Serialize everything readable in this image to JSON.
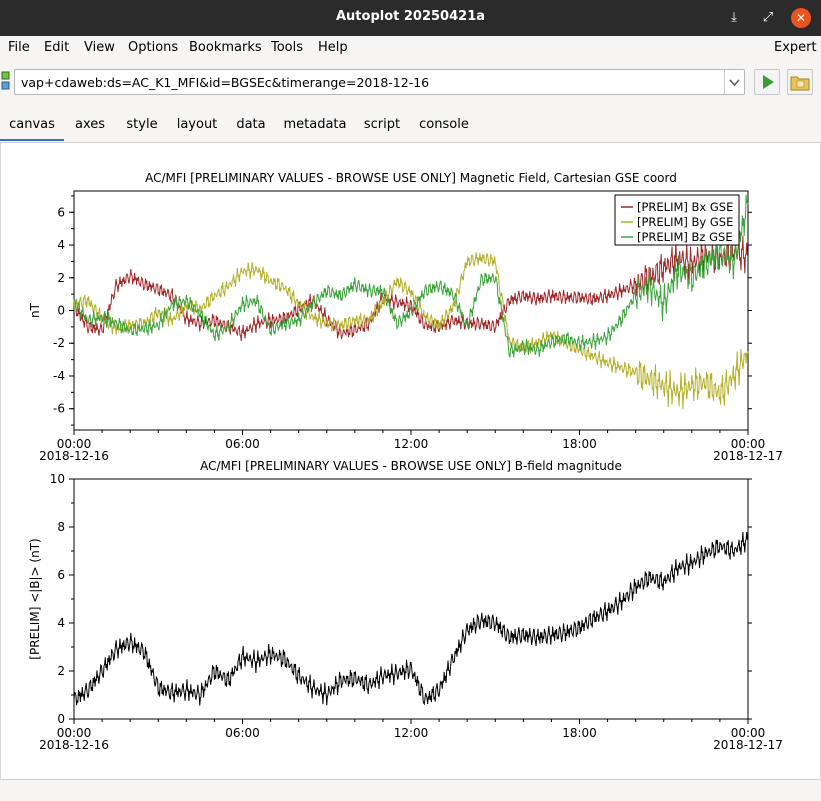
{
  "window": {
    "title": "Autoplot 20250421a"
  },
  "icons": {
    "download": "download-icon",
    "fullscreen": "fullscreen-icon",
    "close": "close-icon",
    "go": "play-icon",
    "open": "folder-icon",
    "dropdown": "chevron-down-icon",
    "app": "autoplot-icon"
  },
  "menu": {
    "items": [
      "File",
      "Edit",
      "View",
      "Options",
      "Bookmarks",
      "Tools",
      "Help"
    ],
    "expert": "Expert"
  },
  "uri": {
    "value": "vap+cdaweb:ds=AC_K1_MFI&id=BGSEc&timerange=2018-12-16"
  },
  "tabs": [
    "canvas",
    "axes",
    "style",
    "layout",
    "data",
    "metadata",
    "script",
    "console"
  ],
  "active_tab": "canvas",
  "colors": {
    "bx": "#a0282a",
    "by": "#b3b02a",
    "bz": "#3ca43c",
    "bmag": "#000000",
    "accent": "#3b73b9"
  },
  "chart_data": [
    {
      "type": "line",
      "title": "AC/MFI  [PRELIMINARY VALUES - BROWSE USE ONLY] Magnetic Field, Cartesian GSE coord",
      "ylabel": "nT",
      "xlabel": "",
      "ylim": [
        -7.3,
        7.3
      ],
      "yticks": [
        "6",
        "4",
        "2",
        "0",
        "-2",
        "-4",
        "-6"
      ],
      "xticks": [
        "00:00",
        "06:00",
        "12:00",
        "18:00",
        "00:00"
      ],
      "xtick_dates": [
        "2018-12-16",
        "",
        "",
        "",
        "2018-12-17"
      ],
      "xlim_hours": [
        0,
        24
      ],
      "legend": "top-right",
      "series": [
        {
          "name": "[PRELIM] Bx GSE",
          "x": [
            0,
            0.5,
            1,
            1.5,
            2,
            2.5,
            3,
            3.5,
            4,
            4.5,
            5,
            5.5,
            6,
            6.5,
            7,
            7.5,
            8,
            8.5,
            9,
            9.5,
            10,
            10.5,
            11,
            11.5,
            12,
            12.5,
            13,
            13.5,
            14,
            14.5,
            15,
            15.5,
            16,
            16.5,
            17,
            17.5,
            18,
            18.5,
            19,
            19.5,
            20,
            20.5,
            21,
            21.5,
            22,
            22.5,
            23,
            23.5,
            24
          ],
          "values": [
            0.2,
            -1.0,
            -1.2,
            1.5,
            2.1,
            1.6,
            1.3,
            0.9,
            -0.5,
            -0.8,
            -0.6,
            -1.0,
            -1.4,
            -0.8,
            -0.6,
            -0.5,
            0.1,
            0.6,
            -0.5,
            -1.4,
            -1.2,
            -0.8,
            0.8,
            0.5,
            0.3,
            -0.9,
            -1.0,
            -0.6,
            -0.8,
            -0.8,
            -1.0,
            0.6,
            0.9,
            0.7,
            0.9,
            0.8,
            0.8,
            0.7,
            0.9,
            1.2,
            1.6,
            2.0,
            2.6,
            3.2,
            2.9,
            3.4,
            3.1,
            3.6,
            3.3
          ]
        },
        {
          "name": "[PRELIM] By GSE",
          "x": [
            0,
            0.5,
            1,
            1.5,
            2,
            2.5,
            3,
            3.5,
            4,
            4.5,
            5,
            5.5,
            6,
            6.5,
            7,
            7.5,
            8,
            8.5,
            9,
            9.5,
            10,
            10.5,
            11,
            11.5,
            12,
            12.5,
            13,
            13.5,
            14,
            14.5,
            15,
            15.5,
            16,
            16.5,
            17,
            17.5,
            18,
            18.5,
            19,
            19.5,
            20,
            20.5,
            21,
            21.5,
            22,
            22.5,
            23,
            23.5,
            24
          ],
          "values": [
            0.4,
            0.6,
            -0.5,
            -1.1,
            -0.9,
            -0.8,
            -0.1,
            -0.6,
            0.3,
            0.1,
            0.9,
            1.5,
            2.4,
            2.5,
            1.8,
            1.4,
            0.4,
            -0.4,
            -0.8,
            -0.9,
            -0.6,
            -0.6,
            0.5,
            1.8,
            1.1,
            -0.4,
            -0.9,
            0.2,
            3.0,
            3.2,
            3.0,
            -1.9,
            -2.3,
            -2.0,
            -1.5,
            -2.0,
            -2.4,
            -2.8,
            -3.2,
            -3.5,
            -3.8,
            -4.2,
            -4.6,
            -5.0,
            -4.6,
            -4.4,
            -5.1,
            -4.0,
            -2.5
          ]
        },
        {
          "name": "[PRELIM] Bz GSE",
          "x": [
            0,
            0.5,
            1,
            1.5,
            2,
            2.5,
            3,
            3.5,
            4,
            4.5,
            5,
            5.5,
            6,
            6.5,
            7,
            7.5,
            8,
            8.5,
            9,
            9.5,
            10,
            10.5,
            11,
            11.5,
            12,
            12.5,
            13,
            13.5,
            14,
            14.5,
            15,
            15.5,
            16,
            16.5,
            17,
            17.5,
            18,
            18.5,
            19,
            19.5,
            20,
            20.5,
            21,
            21.5,
            22,
            22.5,
            23,
            23.5,
            24
          ],
          "values": [
            0.5,
            -0.6,
            -0.4,
            -0.8,
            -1.2,
            -1.1,
            -0.9,
            0.4,
            0.6,
            -0.2,
            -1.5,
            -1.0,
            0.4,
            0.6,
            -1.2,
            -0.8,
            -0.6,
            0.4,
            1.2,
            0.9,
            1.6,
            1.2,
            1.2,
            -0.8,
            -0.1,
            1.2,
            1.5,
            1.0,
            -1.0,
            1.9,
            2.0,
            -2.5,
            -2.2,
            -2.4,
            -1.9,
            -1.7,
            -2.0,
            -1.9,
            -1.6,
            -0.5,
            1.0,
            1.5,
            0.4,
            2.5,
            2.0,
            2.9,
            3.6,
            3.0,
            6.5
          ]
        }
      ]
    },
    {
      "type": "line",
      "title": "AC/MFI  [PRELIMINARY VALUES - BROWSE USE ONLY] B-field magnitude",
      "ylabel": "[PRELIM] <|B|> (nT)",
      "xlabel": "",
      "ylim": [
        0,
        10
      ],
      "yticks": [
        "10",
        "8",
        "6",
        "4",
        "2",
        "0"
      ],
      "xticks": [
        "00:00",
        "06:00",
        "12:00",
        "18:00",
        "00:00"
      ],
      "xtick_dates": [
        "2018-12-16",
        "",
        "",
        "",
        "2018-12-17"
      ],
      "xlim_hours": [
        0,
        24
      ],
      "series": [
        {
          "name": "",
          "x": [
            0,
            0.5,
            1,
            1.5,
            2,
            2.5,
            3,
            3.5,
            4,
            4.5,
            5,
            5.5,
            6,
            6.5,
            7,
            7.5,
            8,
            8.5,
            9,
            9.5,
            10,
            10.5,
            11,
            11.5,
            12,
            12.5,
            13,
            13.5,
            14,
            14.5,
            15,
            15.5,
            16,
            16.5,
            17,
            17.5,
            18,
            18.5,
            19,
            19.5,
            20,
            20.5,
            21,
            21.5,
            22,
            22.5,
            23,
            23.5,
            24
          ],
          "values": [
            0.8,
            1.2,
            2.0,
            2.9,
            3.2,
            2.8,
            1.3,
            1.1,
            1.2,
            1.0,
            2.0,
            1.6,
            2.6,
            2.4,
            2.7,
            2.5,
            1.8,
            1.3,
            1.0,
            1.6,
            1.7,
            1.4,
            1.8,
            1.9,
            2.1,
            0.8,
            1.2,
            2.5,
            3.7,
            4.1,
            4.0,
            3.4,
            3.5,
            3.4,
            3.5,
            3.6,
            3.8,
            4.2,
            4.5,
            4.9,
            5.5,
            5.9,
            5.7,
            6.3,
            6.5,
            6.9,
            7.2,
            7.0,
            7.5
          ]
        }
      ]
    }
  ]
}
